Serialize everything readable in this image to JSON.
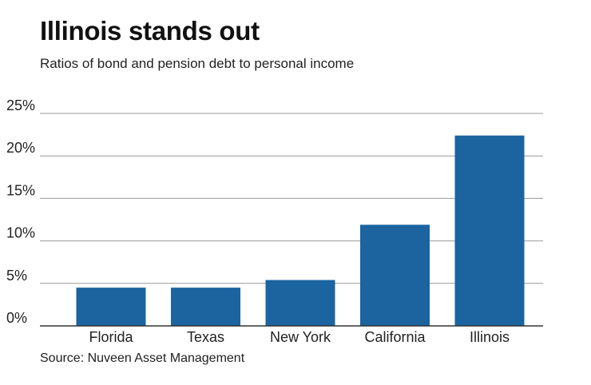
{
  "header": {
    "title": "Illinois stands out",
    "subtitle": "Ratios of bond and pension debt to personal income"
  },
  "footer": {
    "source": "Source: Nuveen Asset Management"
  },
  "colors": {
    "bar": "#1b64a0",
    "gridline": "#999999",
    "baseline": "#333333"
  },
  "chart_data": {
    "type": "bar",
    "title": "Illinois stands out",
    "subtitle": "Ratios of bond and pension debt to personal income",
    "categories": [
      "Florida",
      "Texas",
      "New York",
      "California",
      "Illinois"
    ],
    "values": [
      4.5,
      4.5,
      5.4,
      11.9,
      22.4
    ],
    "ylim": [
      0,
      25
    ],
    "yticks": [
      0,
      5,
      10,
      15,
      20,
      25
    ],
    "ytick_labels": [
      "0%",
      "5%",
      "10%",
      "15%",
      "20%",
      "25%"
    ],
    "xlabel": "",
    "ylabel": "",
    "grid": true,
    "legend": "none"
  }
}
